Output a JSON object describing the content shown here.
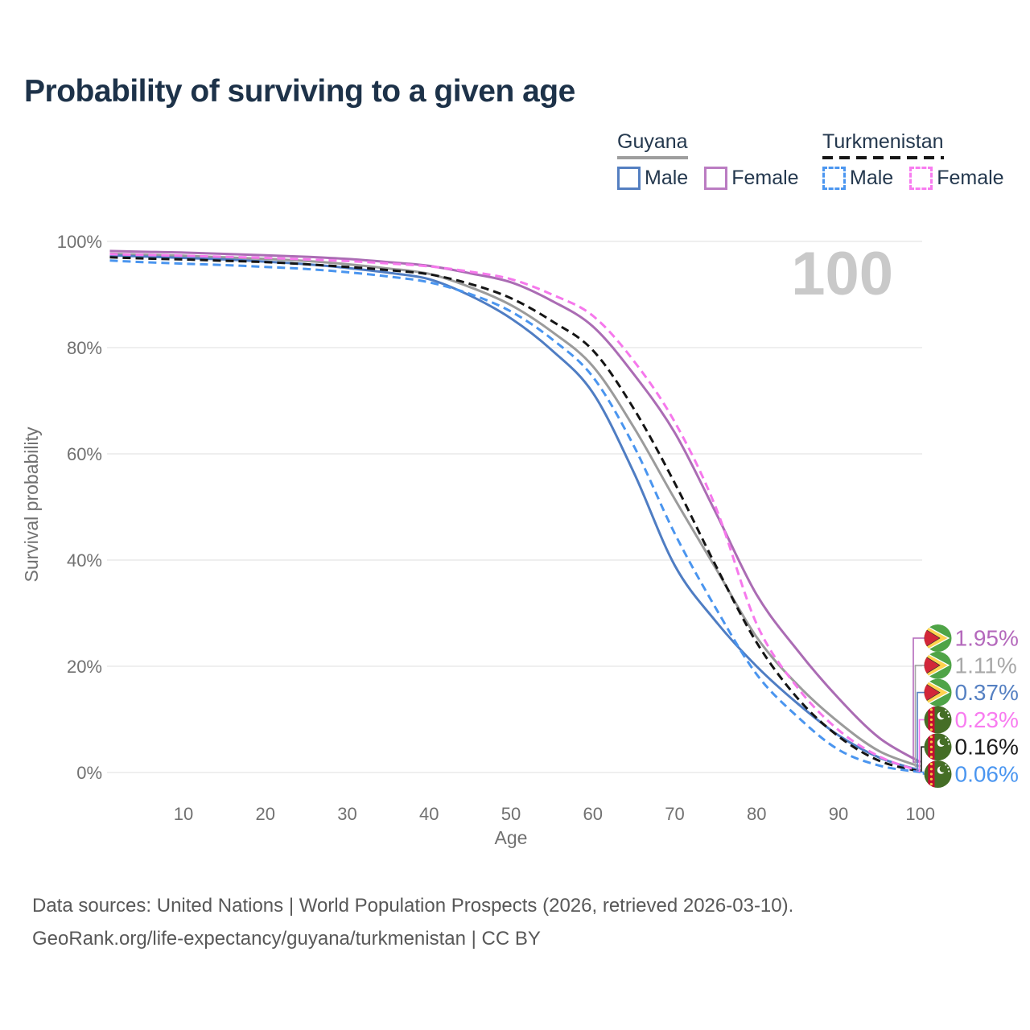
{
  "title": "Probability of surviving to a given age",
  "watermark": "100",
  "legend": {
    "groups": [
      {
        "name": "Guyana",
        "line_style": "solid",
        "underline_color": "#9e9e9e",
        "items": [
          {
            "label": "Male",
            "color": "#547fc1"
          },
          {
            "label": "Female",
            "color": "#bb7cc2"
          }
        ]
      },
      {
        "name": "Turkmenistan",
        "line_style": "dashed",
        "underline_color": "#161616",
        "items": [
          {
            "label": "Male",
            "color": "#4b96f0"
          },
          {
            "label": "Female",
            "color": "#f87cf0"
          }
        ]
      }
    ]
  },
  "chart_data": {
    "type": "line",
    "title": "Probability of surviving to a given age",
    "xlabel": "Age",
    "ylabel": "Survival probability",
    "xlim": [
      0,
      100
    ],
    "ylim": [
      0,
      100
    ],
    "grid": "horizontal",
    "x_ticks": [
      10,
      20,
      30,
      40,
      50,
      60,
      70,
      80,
      90,
      100
    ],
    "y_ticks": [
      {
        "value": 0,
        "label": "0%"
      },
      {
        "value": 20,
        "label": "20%"
      },
      {
        "value": 40,
        "label": "40%"
      },
      {
        "value": 60,
        "label": "60%"
      },
      {
        "value": 80,
        "label": "80%"
      },
      {
        "value": 100,
        "label": "100%"
      }
    ],
    "x": [
      1,
      5,
      10,
      15,
      20,
      25,
      30,
      35,
      40,
      45,
      50,
      55,
      60,
      65,
      70,
      75,
      80,
      85,
      90,
      95,
      100
    ],
    "series": [
      {
        "name": "Guyana Total",
        "country": "Guyana",
        "sex": "Both",
        "style": "solid",
        "color": "#9b9b9b",
        "values": [
          97.7,
          97.5,
          97.3,
          97.0,
          96.7,
          96.3,
          95.7,
          94.9,
          93.9,
          91.4,
          88.0,
          83.0,
          76.5,
          65.0,
          51.5,
          38.5,
          25.5,
          16.5,
          9.5,
          4.0,
          1.11
        ]
      },
      {
        "name": "Guyana Male",
        "country": "Guyana",
        "sex": "Male",
        "style": "solid",
        "color": "#4f7dc3",
        "values": [
          97.4,
          97.15,
          96.9,
          96.6,
          96.2,
          95.7,
          95.0,
          94.1,
          92.9,
          89.8,
          85.5,
          79.5,
          71.5,
          56.5,
          39.0,
          28.5,
          20.0,
          13.0,
          7.0,
          2.8,
          0.37
        ]
      },
      {
        "name": "Guyana Female",
        "country": "Guyana",
        "sex": "Female",
        "style": "solid",
        "color": "#ab6cb4",
        "values": [
          98.2,
          98.05,
          97.9,
          97.65,
          97.4,
          97.1,
          96.7,
          96.1,
          95.4,
          94.0,
          92.3,
          88.8,
          84.0,
          75.0,
          64.0,
          49.0,
          33.5,
          23.0,
          14.0,
          6.5,
          1.95
        ]
      },
      {
        "name": "Turkmenistan Total",
        "country": "Turkmenistan",
        "sex": "Both",
        "style": "dashed",
        "color": "#141414",
        "values": [
          97.0,
          96.8,
          96.6,
          96.35,
          96.1,
          95.7,
          95.2,
          94.6,
          93.8,
          92.0,
          89.3,
          85.0,
          79.5,
          68.5,
          54.5,
          39.0,
          24.5,
          14.0,
          6.8,
          2.2,
          0.16
        ]
      },
      {
        "name": "Turkmenistan Male",
        "country": "Turkmenistan",
        "sex": "Male",
        "style": "dashed",
        "color": "#4a95ef",
        "values": [
          96.4,
          96.1,
          95.8,
          95.55,
          95.2,
          94.8,
          94.2,
          93.4,
          92.3,
          90.1,
          86.8,
          81.6,
          74.5,
          61.5,
          45.0,
          31.0,
          18.5,
          10.5,
          4.3,
          1.3,
          0.06
        ]
      },
      {
        "name": "Turkmenistan Female",
        "country": "Turkmenistan",
        "sex": "Female",
        "style": "dashed",
        "color": "#f678ec",
        "values": [
          97.6,
          97.45,
          97.3,
          97.1,
          96.9,
          96.6,
          96.3,
          95.85,
          95.3,
          94.3,
          92.9,
          90.0,
          86.0,
          77.5,
          66.0,
          50.0,
          28.0,
          16.0,
          8.0,
          3.0,
          0.23
        ]
      }
    ],
    "end_labels": [
      {
        "text": "1.95%",
        "value": 1.95,
        "color": "#b469bc",
        "flag": "guyana",
        "series": "Guyana Female"
      },
      {
        "text": "1.11%",
        "value": 1.11,
        "color": "#a8a8a8",
        "flag": "guyana",
        "series": "Guyana Total"
      },
      {
        "text": "0.37%",
        "value": 0.37,
        "color": "#5580c2",
        "flag": "guyana",
        "series": "Guyana Male"
      },
      {
        "text": "0.23%",
        "value": 0.23,
        "color": "#f87cf0",
        "flag": "turkmenistan",
        "series": "Turkmenistan Female"
      },
      {
        "text": "0.16%",
        "value": 0.16,
        "color": "#1d1d1d",
        "flag": "turkmenistan",
        "series": "Turkmenistan Total"
      },
      {
        "text": "0.06%",
        "value": 0.06,
        "color": "#4b96f0",
        "flag": "turkmenistan",
        "series": "Turkmenistan Male"
      }
    ]
  },
  "footer": {
    "line1": "Data sources: United Nations | World Population Prospects (2026, retrieved 2026-03-10).",
    "line2": "GeoRank.org/life-expectancy/guyana/turkmenistan | CC BY"
  }
}
